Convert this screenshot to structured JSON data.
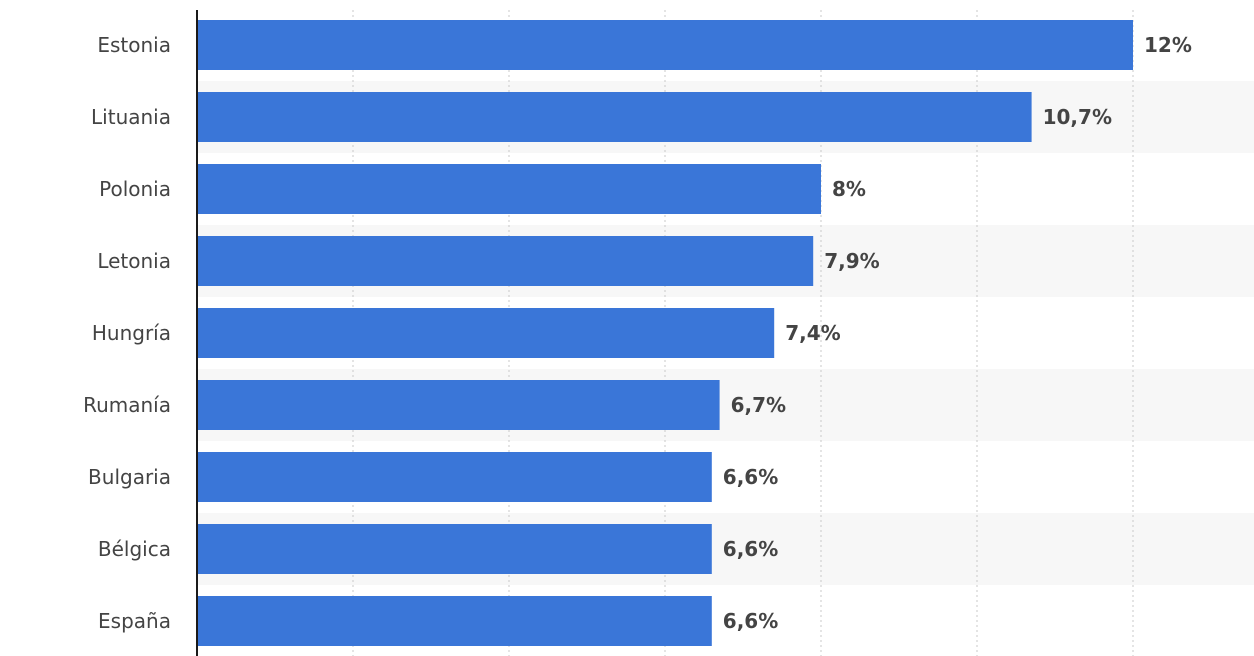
{
  "chart_data": {
    "type": "bar",
    "orientation": "horizontal",
    "categories": [
      "Estonia",
      "Lituania",
      "Polonia",
      "Letonia",
      "Hungría",
      "Rumanía",
      "Bulgaria",
      "Bélgica",
      "España"
    ],
    "values": [
      12,
      10.7,
      8,
      7.9,
      7.4,
      6.7,
      6.6,
      6.6,
      6.6
    ],
    "value_labels": [
      "12%",
      "10,7%",
      "8%",
      "7,9%",
      "7,4%",
      "6,7%",
      "6,6%",
      "6,6%",
      "6,6%"
    ],
    "xlim": [
      0,
      14
    ],
    "x_gridlines": [
      2,
      4,
      6,
      8,
      10,
      12,
      14
    ],
    "grid": true,
    "title": "",
    "xlabel": "",
    "ylabel": ""
  },
  "colors": {
    "bar": "#3a76d8",
    "axis": "#1a1a1a",
    "grid": "#c8c8c8",
    "band": "#f7f7f7",
    "text": "#444444"
  }
}
